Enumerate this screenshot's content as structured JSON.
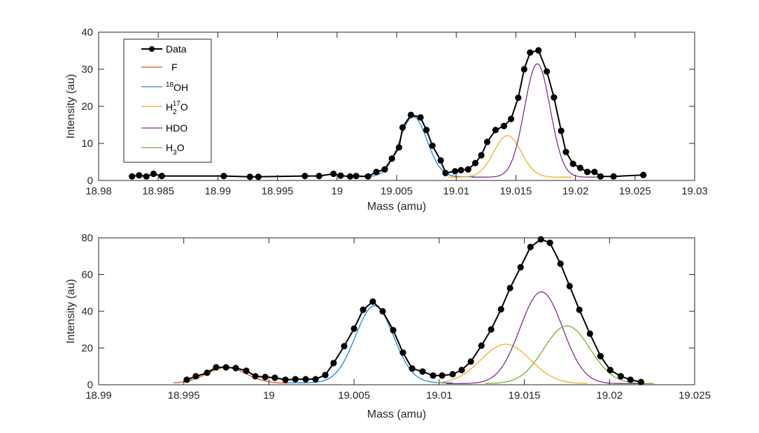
{
  "chart_data": [
    {
      "type": "line",
      "panel": "top",
      "title": "",
      "xlabel": "Mass (amu)",
      "ylabel": "Intensity (au)",
      "xlim": [
        18.98,
        19.03
      ],
      "ylim": [
        0,
        40
      ],
      "xticks": [
        18.98,
        18.985,
        18.99,
        18.995,
        19,
        19.005,
        19.01,
        19.015,
        19.02,
        19.025,
        19.03
      ],
      "xtick_labels": [
        "18.98",
        "18.985",
        "18.99",
        "18.995",
        "19",
        "19.005",
        "19.01",
        "19.015",
        "19.02",
        "19.025",
        "19.03"
      ],
      "yticks": [
        0,
        10,
        20,
        30,
        40
      ],
      "ytick_labels": [
        "0",
        "10",
        "20",
        "30",
        "40"
      ],
      "grid": false,
      "legend_position": "top-left",
      "legend": [
        {
          "key": "data",
          "label": "Data",
          "style": "line-marker",
          "color": "#000000"
        },
        {
          "key": "F",
          "label": "F",
          "style": "line",
          "color": "#D95319"
        },
        {
          "key": "18OH",
          "label": "OH",
          "sup": "18",
          "sup_before": true,
          "style": "line",
          "color": "#1F86D1"
        },
        {
          "key": "H217O",
          "label_parts": [
            "H",
            "2",
            "17",
            "O"
          ],
          "style": "line",
          "color": "#EDB120"
        },
        {
          "key": "HDO",
          "label": "HDO",
          "style": "line",
          "color": "#7E2F8E"
        },
        {
          "key": "H3O",
          "label_parts": [
            "H",
            "3",
            "",
            "O"
          ],
          "style": "line",
          "color": "#77AC30"
        }
      ],
      "series": [
        {
          "name": "Data",
          "color": "#000000",
          "marker": "circle",
          "x": [
            18.9828,
            18.9834,
            18.984,
            18.9846,
            18.9853,
            18.9905,
            18.9927,
            18.9934,
            18.9973,
            18.9985,
            18.9997,
            19.0003,
            19.0011,
            19.0016,
            19.0026,
            19.0033,
            19.004,
            19.0046,
            19.0052,
            19.0055,
            19.0062,
            19.007,
            19.0075,
            19.008,
            19.0087,
            19.0091,
            19.0099,
            19.0104,
            19.011,
            19.0116,
            19.0121,
            19.0126,
            19.0133,
            19.014,
            19.0146,
            19.0152,
            19.0157,
            19.0162,
            19.0169,
            19.0176,
            19.0182,
            19.0188,
            19.0192,
            19.0198,
            19.0204,
            19.021,
            19.0216,
            19.0221,
            19.0232,
            19.0257
          ],
          "y": [
            1.1,
            1.4,
            1.1,
            1.8,
            1.2,
            1.2,
            1.0,
            1.0,
            1.2,
            1.2,
            1.8,
            1.3,
            1.1,
            1.2,
            1.1,
            2.3,
            3.0,
            5.9,
            8.9,
            14.3,
            17.7,
            17.0,
            13.6,
            9.4,
            5.4,
            2.0,
            2.5,
            2.8,
            3.0,
            4.7,
            6.8,
            10.4,
            13.6,
            14.7,
            16.6,
            22.3,
            30.0,
            34.5,
            35.1,
            29.4,
            22.4,
            13.4,
            7.7,
            4.5,
            3.4,
            2.3,
            2.3,
            1.1,
            1.1,
            1.5
          ]
        },
        {
          "name": "18OH",
          "color": "#1F86D1",
          "model": "gaussian",
          "center": 19.0064,
          "amplitude": 16.2,
          "sigma": 0.00115,
          "offset": 1.0,
          "x_range": [
            19.0011,
            19.0115
          ]
        },
        {
          "name": "H217O",
          "color": "#EDB120",
          "model": "gaussian",
          "center": 19.0143,
          "amplitude": 11.2,
          "sigma": 0.00115,
          "offset": 0.9,
          "x_range": [
            19.0093,
            19.0197
          ]
        },
        {
          "name": "HDO",
          "color": "#7E2F8E",
          "model": "gaussian",
          "center": 19.0168,
          "amplitude": 30.6,
          "sigma": 0.00108,
          "offset": 0.9,
          "x_range": [
            19.0113,
            19.0224
          ]
        }
      ]
    },
    {
      "type": "line",
      "panel": "bottom",
      "title": "",
      "xlabel": "Mass (amu)",
      "ylabel": "Intensity (au)",
      "xlim": [
        18.99,
        19.025
      ],
      "ylim": [
        0,
        80
      ],
      "xticks": [
        18.99,
        18.995,
        19,
        19.005,
        19.01,
        19.015,
        19.02,
        19.025
      ],
      "xtick_labels": [
        "18.99",
        "18.995",
        "19",
        "19.005",
        "19.01",
        "19.015",
        "19.02",
        "19.025"
      ],
      "yticks": [
        0,
        20,
        40,
        60,
        80
      ],
      "ytick_labels": [
        "0",
        "20",
        "40",
        "60",
        "80"
      ],
      "grid": false,
      "series": [
        {
          "name": "Data",
          "color": "#000000",
          "marker": "circle",
          "x": [
            18.99518,
            18.99571,
            18.99637,
            18.9969,
            18.99748,
            18.99805,
            18.99867,
            18.9992,
            18.99978,
            19.00035,
            19.00097,
            19.00155,
            19.00216,
            19.00274,
            19.00331,
            19.0038,
            19.00442,
            19.005,
            19.00553,
            19.0061,
            19.00668,
            19.0073,
            19.00787,
            19.00841,
            19.00902,
            19.00964,
            19.01017,
            19.01079,
            19.01132,
            19.01186,
            19.01248,
            19.01305,
            19.01363,
            19.01416,
            19.01478,
            19.01536,
            19.01597,
            19.0165,
            19.01712,
            19.01766,
            19.01823,
            19.01885,
            19.01947,
            19.02004,
            19.02066,
            19.02123,
            19.02185
          ],
          "y": [
            2.7,
            4.6,
            6.5,
            9.5,
            9.5,
            9.1,
            7.6,
            4.6,
            4.2,
            3.8,
            2.7,
            3.0,
            3.0,
            3.0,
            5.3,
            11.8,
            21.0,
            30.5,
            40.8,
            45.3,
            40.0,
            29.7,
            17.5,
            8.8,
            7.2,
            5.0,
            5.0,
            5.7,
            8.0,
            12.6,
            21.3,
            30.1,
            41.1,
            52.6,
            64.0,
            75.0,
            79.2,
            77.3,
            65.9,
            53.7,
            40.8,
            27.8,
            15.6,
            8.0,
            4.6,
            2.7,
            1.5
          ]
        },
        {
          "name": "F",
          "color": "#D95319",
          "model": "gaussian",
          "center": 18.9975,
          "amplitude": 8.6,
          "sigma": 0.00115,
          "offset": 0.8,
          "x_range": [
            18.9944,
            19.0011
          ]
        },
        {
          "name": "18OH",
          "color": "#1F86D1",
          "model": "gaussian",
          "center": 19.0062,
          "amplitude": 42.0,
          "sigma": 0.00112,
          "offset": 1.0,
          "x_range": [
            19.0011,
            19.0108
          ]
        },
        {
          "name": "H217O",
          "color": "#EDB120",
          "model": "gaussian",
          "center": 19.0139,
          "amplitude": 21.5,
          "sigma": 0.00145,
          "offset": 0.6,
          "x_range": [
            19.0099,
            19.0187
          ]
        },
        {
          "name": "HDO",
          "color": "#7E2F8E",
          "model": "gaussian",
          "center": 19.016,
          "amplitude": 50.0,
          "sigma": 0.00125,
          "offset": 0.6,
          "x_range": [
            19.0104,
            19.0222
          ]
        },
        {
          "name": "H3O",
          "color": "#77AC30",
          "model": "gaussian",
          "center": 19.0175,
          "amplitude": 31.5,
          "sigma": 0.00135,
          "offset": 0.6,
          "x_range": [
            19.0127,
            19.0226
          ]
        }
      ]
    }
  ]
}
